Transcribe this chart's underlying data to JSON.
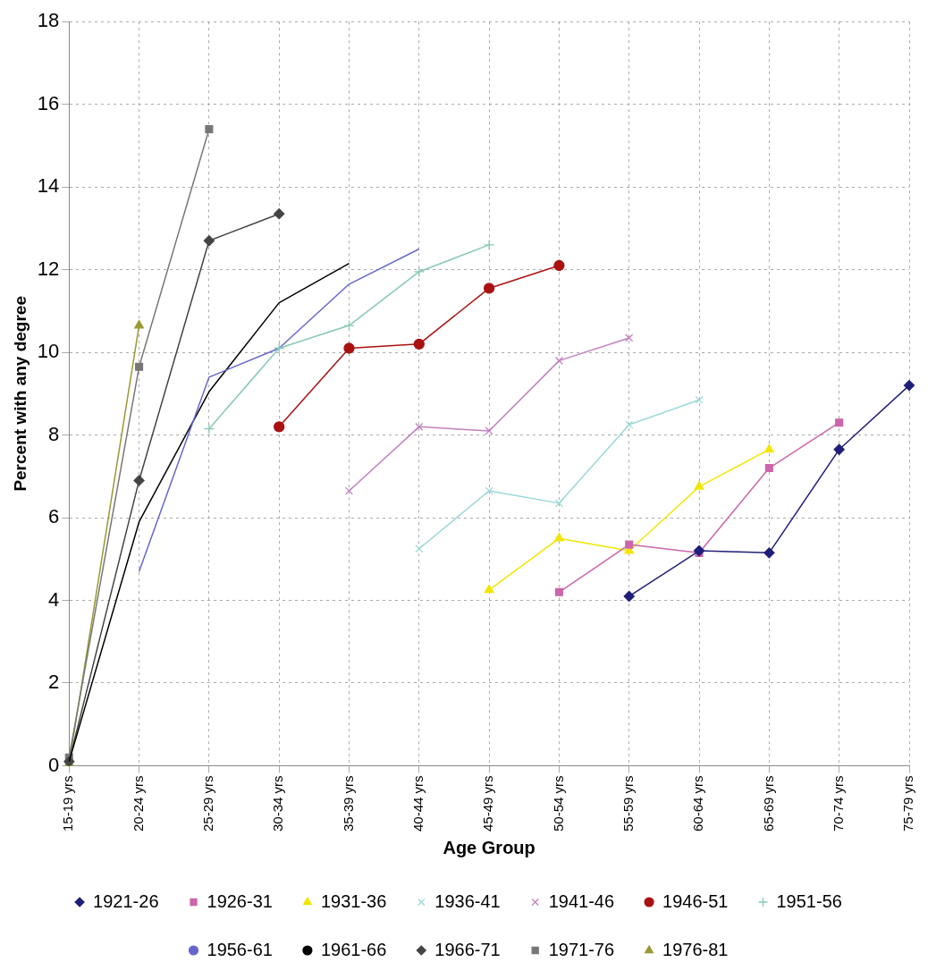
{
  "chart_data": {
    "type": "line",
    "xlabel": "Age Group",
    "ylabel": "Percent with any degree",
    "categories": [
      "15-19 yrs",
      "20-24 yrs",
      "25-29 yrs",
      "30-34 yrs",
      "35-39 yrs",
      "40-44 yrs",
      "45-49 yrs",
      "50-54 yrs",
      "55-59 yrs",
      "60-64 yrs",
      "65-69 yrs",
      "70-74 yrs",
      "75-79 yrs"
    ],
    "ylim": [
      0,
      18
    ],
    "yticks": [
      0,
      2,
      4,
      6,
      8,
      10,
      12,
      14,
      16,
      18
    ],
    "grid": true,
    "legend": "bottom",
    "line_style": "solid",
    "series": [
      {
        "name": "1921-26",
        "color": "#1f1f7a",
        "marker": "diamond",
        "values": [
          null,
          null,
          null,
          null,
          null,
          null,
          null,
          null,
          4.1,
          5.2,
          5.15,
          7.65,
          9.2
        ]
      },
      {
        "name": "1926-31",
        "color": "#cc66aa",
        "marker": "square",
        "values": [
          null,
          null,
          null,
          null,
          null,
          null,
          null,
          4.2,
          5.35,
          5.15,
          7.2,
          8.3,
          null
        ]
      },
      {
        "name": "1931-36",
        "color": "#f2e600",
        "marker": "triangle",
        "values": [
          null,
          null,
          null,
          null,
          null,
          null,
          4.25,
          5.5,
          5.2,
          6.75,
          7.65,
          null,
          null
        ]
      },
      {
        "name": "1936-41",
        "color": "#99d8d8",
        "marker": "cross",
        "values": [
          null,
          null,
          null,
          null,
          null,
          5.25,
          6.65,
          6.35,
          8.25,
          8.85,
          null,
          null,
          null
        ]
      },
      {
        "name": "1941-46",
        "color": "#c080c0",
        "marker": "cross",
        "values": [
          null,
          null,
          null,
          null,
          6.65,
          8.2,
          8.1,
          9.8,
          10.35,
          null,
          null,
          null,
          null
        ]
      },
      {
        "name": "1946-51",
        "color": "#aa1111",
        "marker": "circle",
        "values": [
          null,
          null,
          null,
          8.2,
          10.1,
          10.2,
          11.55,
          12.1,
          null,
          null,
          null,
          null,
          null
        ]
      },
      {
        "name": "1951-56",
        "color": "#88c8b8",
        "marker": "plus",
        "values": [
          null,
          null,
          8.15,
          10.1,
          10.65,
          11.95,
          12.6,
          null,
          null,
          null,
          null,
          null,
          null
        ]
      },
      {
        "name": "1956-61",
        "color": "#6666cc",
        "marker": "none",
        "values": [
          null,
          4.7,
          9.4,
          10.1,
          11.65,
          12.5,
          null,
          null,
          null,
          null,
          null,
          null,
          null
        ]
      },
      {
        "name": "1961-66",
        "color": "#000000",
        "marker": "none",
        "values": [
          0.1,
          5.9,
          9.05,
          11.2,
          12.15,
          null,
          null,
          null,
          null,
          null,
          null,
          null,
          null
        ]
      },
      {
        "name": "1966-71",
        "color": "#444444",
        "marker": "diamond",
        "values": [
          0.1,
          6.9,
          12.7,
          13.35,
          null,
          null,
          null,
          null,
          null,
          null,
          null,
          null,
          null
        ]
      },
      {
        "name": "1971-76",
        "color": "#777777",
        "marker": "square",
        "values": [
          0.2,
          9.65,
          15.4,
          null,
          null,
          null,
          null,
          null,
          null,
          null,
          null,
          null,
          null
        ]
      },
      {
        "name": "1976-81",
        "color": "#999933",
        "marker": "triangle",
        "values": [
          0.05,
          10.65,
          null,
          null,
          null,
          null,
          null,
          null,
          null,
          null,
          null,
          null,
          null
        ]
      }
    ]
  }
}
